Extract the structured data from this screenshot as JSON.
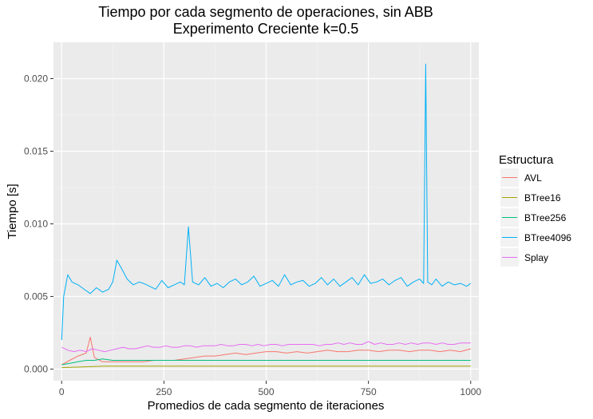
{
  "chart_data": {
    "type": "line",
    "title": "Tiempo por cada segmento de operaciones, sin ABB",
    "subtitle": "Experimento Creciente k=0.5",
    "xlabel": "Promedios de cada segmento de iteraciones",
    "ylabel": "Tiempo [s]",
    "xlim": [
      -20,
      1020
    ],
    "ylim": [
      -0.0008,
      0.0225
    ],
    "x_ticks": [
      0,
      250,
      500,
      750,
      1000
    ],
    "x_tick_labels": [
      "0",
      "250",
      "500",
      "750",
      "1000"
    ],
    "y_ticks": [
      0,
      0.005,
      0.01,
      0.015,
      0.02
    ],
    "y_tick_labels": [
      "0.000",
      "0.005",
      "0.010",
      "0.015",
      "0.020"
    ],
    "grid": true,
    "legend_title": "Estructura",
    "legend_position": "right",
    "series": [
      {
        "name": "AVL",
        "color": "#F8766D",
        "x": [
          0,
          20,
          40,
          60,
          70,
          80,
          100,
          125,
          150,
          175,
          200,
          225,
          250,
          275,
          300,
          325,
          350,
          375,
          400,
          425,
          450,
          475,
          500,
          525,
          550,
          575,
          600,
          625,
          650,
          675,
          700,
          725,
          750,
          775,
          800,
          825,
          850,
          875,
          900,
          925,
          950,
          975,
          1000
        ],
        "y": [
          0.0003,
          0.0006,
          0.0009,
          0.0011,
          0.0022,
          0.0008,
          0.0005,
          0.0005,
          0.0005,
          0.0005,
          0.0005,
          0.0006,
          0.0006,
          0.0006,
          0.0007,
          0.0008,
          0.0009,
          0.0009,
          0.001,
          0.0011,
          0.001,
          0.0011,
          0.0012,
          0.0012,
          0.0011,
          0.0012,
          0.0011,
          0.0012,
          0.0013,
          0.0012,
          0.0012,
          0.0013,
          0.0013,
          0.0012,
          0.0013,
          0.0013,
          0.0012,
          0.0013,
          0.0013,
          0.0012,
          0.0013,
          0.0012,
          0.0014
        ]
      },
      {
        "name": "BTree16",
        "color": "#A3A500",
        "x": [
          0,
          50,
          100,
          150,
          200,
          250,
          300,
          350,
          400,
          450,
          500,
          550,
          600,
          650,
          700,
          750,
          800,
          850,
          900,
          950,
          1000
        ],
        "y": [
          0.0001,
          0.00015,
          0.0002,
          0.0002,
          0.0002,
          0.0002,
          0.0002,
          0.0002,
          0.0002,
          0.0002,
          0.0002,
          0.0002,
          0.0002,
          0.0002,
          0.0002,
          0.0002,
          0.0002,
          0.0002,
          0.0002,
          0.0002,
          0.0002
        ]
      },
      {
        "name": "BTree256",
        "color": "#00BF7D",
        "x": [
          0,
          20,
          40,
          60,
          80,
          100,
          125,
          150,
          175,
          200,
          225,
          250,
          275,
          300,
          325,
          350,
          375,
          400,
          425,
          450,
          475,
          500,
          525,
          550,
          575,
          600,
          625,
          650,
          675,
          700,
          725,
          750,
          775,
          800,
          825,
          850,
          875,
          900,
          925,
          950,
          975,
          1000
        ],
        "y": [
          0.0003,
          0.0004,
          0.0005,
          0.0006,
          0.0006,
          0.0007,
          0.0006,
          0.0006,
          0.0006,
          0.0006,
          0.0006,
          0.0006,
          0.0006,
          0.0006,
          0.0006,
          0.0006,
          0.0006,
          0.0006,
          0.0006,
          0.0006,
          0.0006,
          0.0006,
          0.0006,
          0.0006,
          0.0006,
          0.0006,
          0.0006,
          0.0006,
          0.0006,
          0.0006,
          0.0006,
          0.0006,
          0.0006,
          0.0006,
          0.0006,
          0.0006,
          0.0006,
          0.0006,
          0.0006,
          0.0006,
          0.0006,
          0.0006
        ]
      },
      {
        "name": "BTree4096",
        "color": "#00B0F6",
        "x": [
          0,
          5,
          15,
          25,
          40,
          55,
          70,
          85,
          100,
          115,
          125,
          135,
          145,
          160,
          175,
          190,
          200,
          215,
          230,
          245,
          260,
          275,
          290,
          300,
          310,
          320,
          335,
          350,
          365,
          380,
          395,
          410,
          425,
          440,
          455,
          470,
          485,
          500,
          515,
          530,
          545,
          560,
          575,
          590,
          605,
          620,
          635,
          650,
          665,
          680,
          695,
          710,
          725,
          740,
          755,
          770,
          785,
          800,
          815,
          830,
          845,
          860,
          875,
          885,
          890,
          895,
          905,
          915,
          930,
          945,
          960,
          975,
          990,
          1000
        ],
        "y": [
          0.002,
          0.005,
          0.0065,
          0.006,
          0.0058,
          0.0055,
          0.0052,
          0.0056,
          0.0053,
          0.0055,
          0.006,
          0.0075,
          0.007,
          0.0062,
          0.0058,
          0.006,
          0.0059,
          0.0057,
          0.0055,
          0.0061,
          0.0056,
          0.0058,
          0.006,
          0.0058,
          0.0098,
          0.006,
          0.0058,
          0.0063,
          0.0057,
          0.0059,
          0.0056,
          0.006,
          0.0062,
          0.0058,
          0.006,
          0.0064,
          0.0057,
          0.0059,
          0.0061,
          0.0057,
          0.0065,
          0.0058,
          0.006,
          0.0061,
          0.0057,
          0.0059,
          0.0063,
          0.0058,
          0.0062,
          0.0057,
          0.006,
          0.0063,
          0.0058,
          0.0065,
          0.0059,
          0.006,
          0.0062,
          0.0058,
          0.0061,
          0.0063,
          0.0057,
          0.006,
          0.0062,
          0.0059,
          0.021,
          0.006,
          0.0058,
          0.0062,
          0.0057,
          0.006,
          0.0058,
          0.0059,
          0.0057,
          0.0059
        ]
      },
      {
        "name": "Splay",
        "color": "#E76BF3",
        "x": [
          0,
          15,
          30,
          45,
          60,
          75,
          90,
          105,
          120,
          135,
          150,
          165,
          180,
          195,
          210,
          225,
          240,
          255,
          270,
          285,
          300,
          315,
          330,
          345,
          360,
          375,
          390,
          405,
          420,
          435,
          450,
          465,
          480,
          495,
          510,
          525,
          540,
          555,
          570,
          585,
          600,
          615,
          630,
          645,
          660,
          675,
          690,
          705,
          720,
          735,
          750,
          765,
          780,
          795,
          810,
          825,
          840,
          855,
          870,
          885,
          900,
          915,
          930,
          945,
          960,
          975,
          990,
          1000
        ],
        "y": [
          0.0015,
          0.0013,
          0.0012,
          0.0013,
          0.0012,
          0.0014,
          0.0013,
          0.0012,
          0.0013,
          0.0014,
          0.0015,
          0.0014,
          0.0014,
          0.0015,
          0.0016,
          0.0015,
          0.0015,
          0.0016,
          0.0015,
          0.0015,
          0.0016,
          0.0016,
          0.0015,
          0.0016,
          0.0016,
          0.0016,
          0.0017,
          0.0016,
          0.0016,
          0.0017,
          0.0017,
          0.0016,
          0.0017,
          0.0016,
          0.0017,
          0.0017,
          0.0016,
          0.0017,
          0.0017,
          0.0017,
          0.0017,
          0.0017,
          0.0016,
          0.0017,
          0.0017,
          0.0018,
          0.0017,
          0.0018,
          0.0017,
          0.0017,
          0.0019,
          0.0017,
          0.0018,
          0.0017,
          0.0017,
          0.0018,
          0.0017,
          0.0018,
          0.0017,
          0.0018,
          0.0018,
          0.0017,
          0.0018,
          0.0017,
          0.0017,
          0.0018,
          0.0018,
          0.0018
        ]
      }
    ]
  }
}
